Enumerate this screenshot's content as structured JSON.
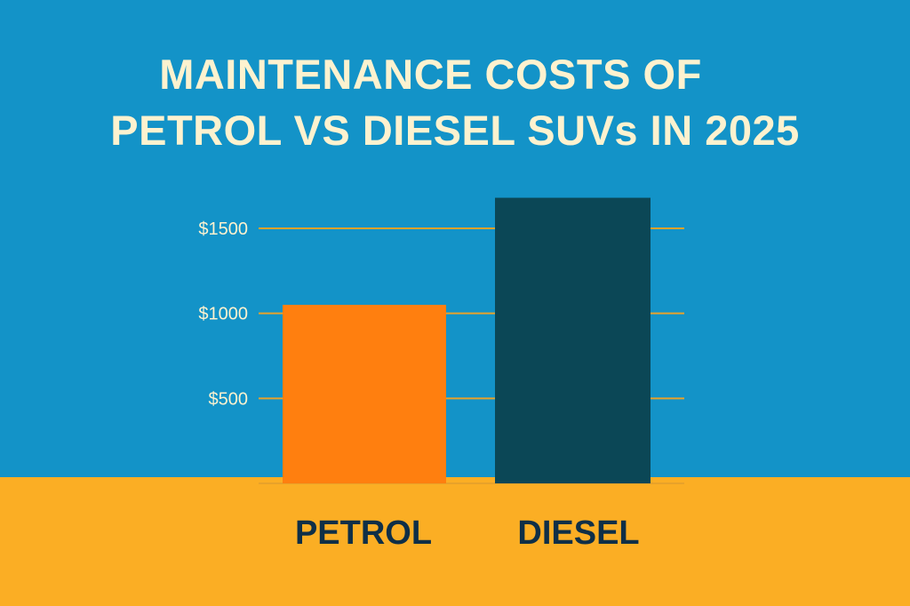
{
  "chart_data": {
    "type": "bar",
    "title_lines": [
      "MAINTENANCE COSTS OF",
      "PETROL VS DIESEL SUVs IN 2025"
    ],
    "categories": [
      "PETROL",
      "DIESEL"
    ],
    "values": [
      1050,
      1680
    ],
    "y_ticks": [
      500,
      1000,
      1500
    ],
    "tick_labels": [
      "$500",
      "$1000",
      "$1500"
    ],
    "ylim": [
      0,
      1500
    ],
    "grid": true,
    "xlabel": "",
    "ylabel": "",
    "colors": {
      "background": "#1393c8",
      "ground": "#fbae24",
      "gridline": "#e8a22a",
      "title": "#fdf2cf",
      "tick_text": "#fdf2cf",
      "category_text": "#0f2f47",
      "bars": [
        "#ff7f0f",
        "#0b4756"
      ]
    }
  }
}
